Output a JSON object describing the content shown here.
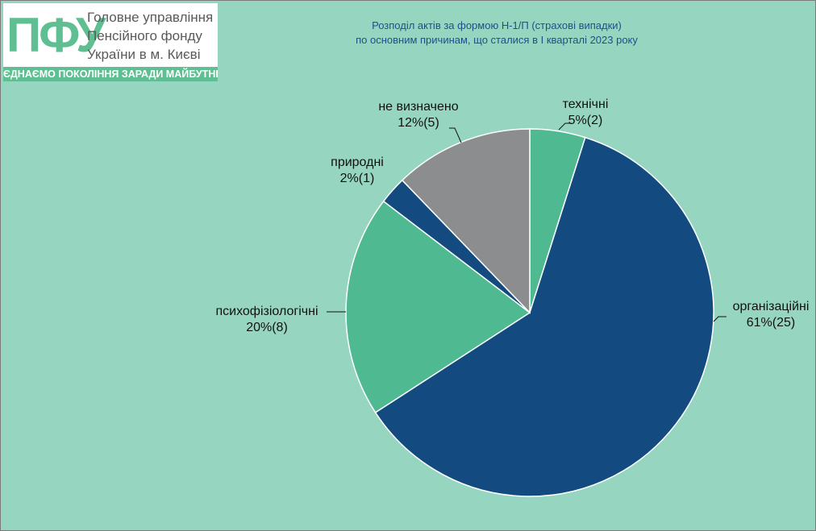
{
  "logo": {
    "mark": "ПФУ",
    "lines": [
      "Головне управління",
      "Пенсійного фонду",
      "України в м. Києві"
    ],
    "tagline": "ЄДНАЄМО ПОКОЛІННЯ ЗАРАДИ МАЙБУТНЬОГО"
  },
  "chart_data": {
    "type": "pie",
    "title": "Розподіл актів за формою Н-1/П (страхові випадки)",
    "subtitle": "по  основним причинам, що сталися в I кварталі 2023 року",
    "start_angle_deg": 0,
    "direction": "clockwise",
    "legend": "none",
    "slices": [
      {
        "label": "технічні",
        "value_label": "5%(2)",
        "percent": 5,
        "count": 2,
        "color": "#4fba92"
      },
      {
        "label": "організаційні",
        "value_label": "61%(25)",
        "percent": 61,
        "count": 25,
        "color": "#134b80"
      },
      {
        "label": "психофізіологічні",
        "value_label": "20%(8)",
        "percent": 20,
        "count": 8,
        "color": "#4fba92"
      },
      {
        "label": "природні",
        "value_label": "2%(1)",
        "percent": 2,
        "count": 1,
        "color": "#134b80"
      },
      {
        "label": "не визначено",
        "value_label": "12%(5)",
        "percent": 12,
        "count": 5,
        "color": "#8c8d8e"
      }
    ]
  }
}
